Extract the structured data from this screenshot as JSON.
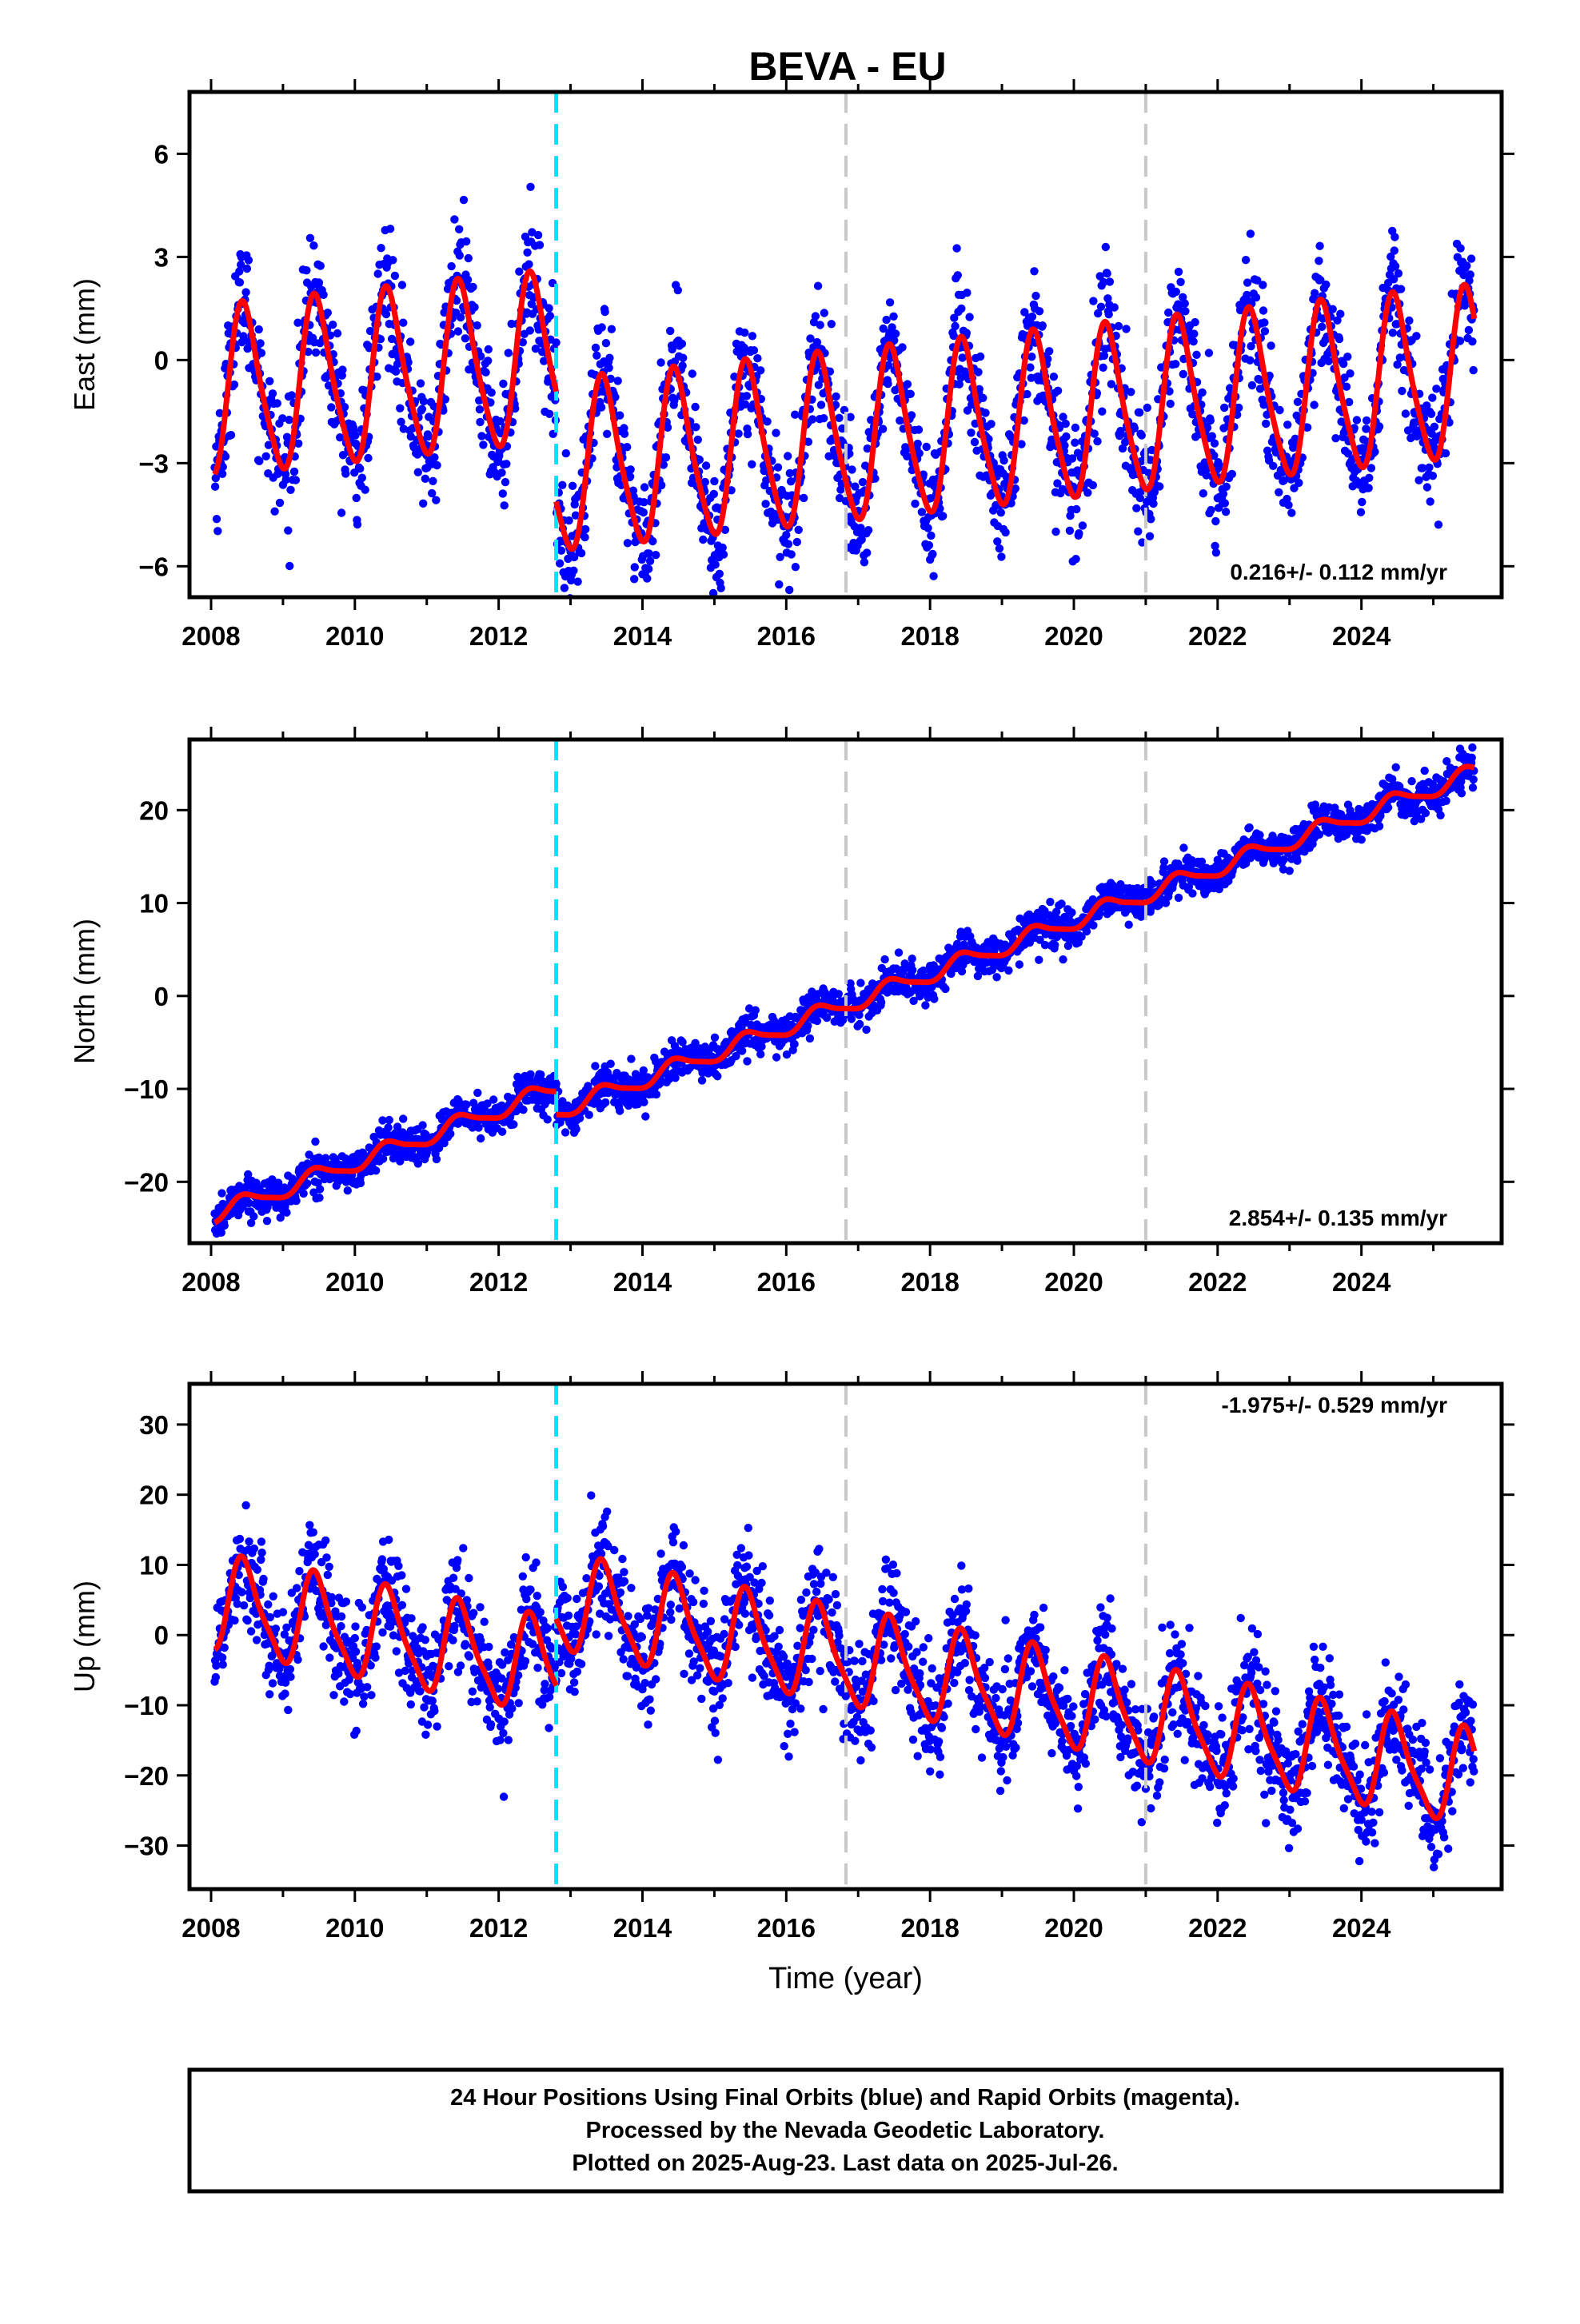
{
  "header": {
    "title": "BEVA - EU"
  },
  "footer": {
    "lines": [
      "24 Hour Positions Using Final Orbits (blue) and Rapid Orbits (magenta).",
      "Processed by the Nevada Geodetic Laboratory.",
      "Plotted on 2025-Aug-23. Last data on 2025-Jul-26."
    ]
  },
  "chart_data": [
    {
      "type": "scatter",
      "ylabel": "East (mm)",
      "xlabel": "",
      "rate_label": "0.216+/- 0.112 mm/yr",
      "rate_placement": "bottom-right",
      "xlim": [
        2007.7,
        2025.95
      ],
      "ylim": [
        -6.9,
        7.8
      ],
      "xticks": [
        2008,
        2010,
        2012,
        2014,
        2016,
        2018,
        2020,
        2022,
        2024
      ],
      "yticks": [
        -6,
        -3,
        0,
        3,
        6
      ],
      "ytick_labels": [
        "−6",
        "−3",
        "0",
        "3",
        "6"
      ],
      "x_range": [
        2008.05,
        2025.57
      ],
      "offset": -3.2,
      "trend": {
        "intercept": -1.0,
        "slope": 0.216
      },
      "annual_amplitude": 2.4,
      "semiannual_amplitude": 0.4,
      "noise_sd": 0.9,
      "model_color": "#ff0000",
      "points_color": "#0000ff",
      "breaks": [
        {
          "year": 2012.8,
          "color": "#00e5ff"
        },
        {
          "year": 2016.83,
          "color": "#c8c8c8"
        },
        {
          "year": 2021.0,
          "color": "#c8c8c8"
        }
      ]
    },
    {
      "type": "scatter",
      "ylabel": "North (mm)",
      "xlabel": "",
      "rate_label": "2.854+/- 0.135 mm/yr",
      "rate_placement": "bottom-right",
      "xlim": [
        2007.7,
        2025.95
      ],
      "ylim": [
        -26.6,
        27.6
      ],
      "xticks": [
        2008,
        2010,
        2012,
        2014,
        2016,
        2018,
        2020,
        2022,
        2024
      ],
      "yticks": [
        -20,
        -10,
        0,
        10,
        20
      ],
      "ytick_labels": [
        "−20",
        "−10",
        "0",
        "10",
        "20"
      ],
      "x_range": [
        2008.05,
        2025.57
      ],
      "offset": -2.5,
      "trend": {
        "intercept": -23.5,
        "slope": 2.854
      },
      "annual_amplitude": 0.9,
      "semiannual_amplitude": 0.2,
      "noise_sd": 1.0,
      "model_color": "#ff0000",
      "points_color": "#0000ff",
      "breaks": [
        {
          "year": 2012.8,
          "color": "#00e5ff"
        },
        {
          "year": 2016.83,
          "color": "#c8c8c8"
        },
        {
          "year": 2021.0,
          "color": "#c8c8c8"
        }
      ]
    },
    {
      "type": "scatter",
      "ylabel": "Up (mm)",
      "xlabel": "Time (year)",
      "rate_label": "-1.975+/- 0.529 mm/yr",
      "rate_placement": "top-right",
      "xlim": [
        2007.7,
        2025.95
      ],
      "ylim": [
        -36.2,
        35.8
      ],
      "xticks": [
        2008,
        2010,
        2012,
        2014,
        2016,
        2018,
        2020,
        2022,
        2024
      ],
      "yticks": [
        -30,
        -20,
        -10,
        0,
        10,
        20,
        30
      ],
      "ytick_labels": [
        "−30",
        "−20",
        "−10",
        "0",
        "10",
        "20",
        "30"
      ],
      "x_range": [
        2008.05,
        2025.57
      ],
      "offset": 9.5,
      "trend": {
        "intercept": 4.5,
        "slope": -1.975
      },
      "annual_amplitude": 6.5,
      "semiannual_amplitude": 1.5,
      "noise_sd": 4.0,
      "model_color": "#ff0000",
      "points_color": "#0000ff",
      "breaks": [
        {
          "year": 2012.8,
          "color": "#00e5ff"
        },
        {
          "year": 2016.83,
          "color": "#c8c8c8"
        },
        {
          "year": 2021.0,
          "color": "#c8c8c8"
        }
      ]
    }
  ]
}
